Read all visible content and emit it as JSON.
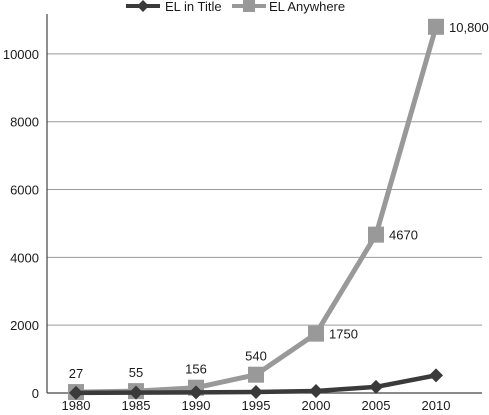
{
  "chart_data": {
    "type": "line",
    "title": "",
    "xlabel": "",
    "ylabel": "",
    "categories": [
      "1980",
      "1985",
      "1990",
      "1995",
      "2000",
      "2005",
      "2010"
    ],
    "ylim": [
      0,
      11000
    ],
    "yticks": [
      0,
      2000,
      4000,
      6000,
      8000,
      10000
    ],
    "grid": true,
    "legend_position": "top-right",
    "series": [
      {
        "name": "EL in Title",
        "values": [
          5,
          10,
          20,
          30,
          60,
          180,
          520
        ],
        "color": "#3a3a3a",
        "marker": "diamond",
        "labels": []
      },
      {
        "name": "EL Anywhere",
        "values": [
          27,
          55,
          156,
          540,
          1750,
          4670,
          10800
        ],
        "color": "#999999",
        "marker": "square",
        "labels": [
          "27",
          "55",
          "156",
          "540",
          "1750",
          "4670",
          "10,800"
        ]
      }
    ]
  }
}
